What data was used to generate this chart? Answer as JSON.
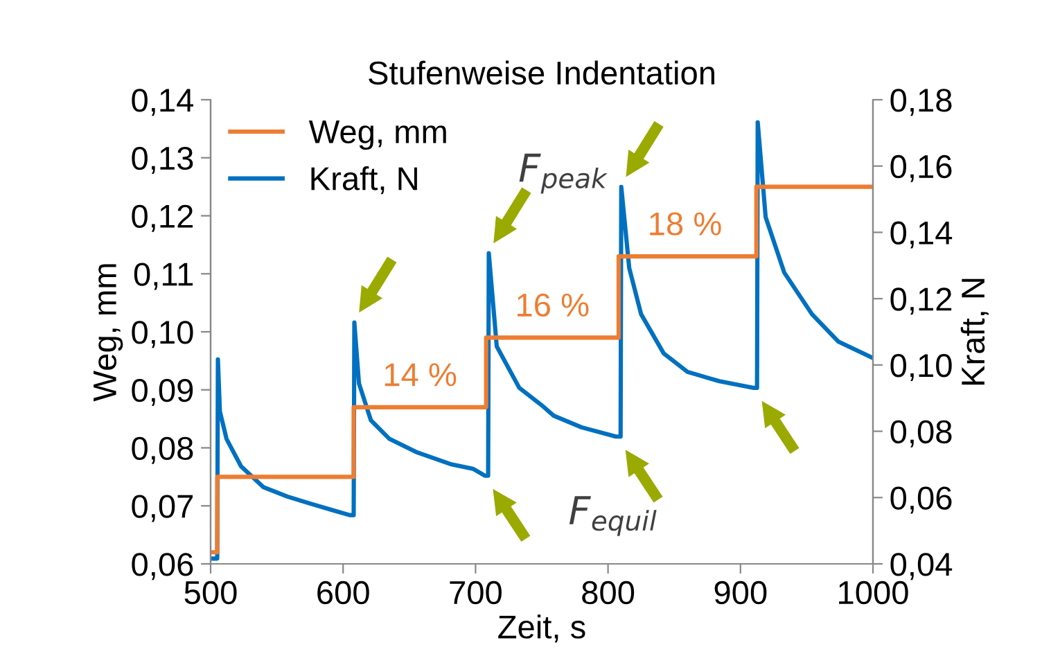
{
  "chart_data": {
    "type": "line",
    "title": "Stufenweise Indentation",
    "xlabel": "Zeit, s",
    "ylabel": "Weg, mm",
    "y2label": "Kraft, N",
    "xlim": [
      500,
      1000
    ],
    "xticks": [
      500,
      600,
      700,
      800,
      900,
      1000
    ],
    "ylim": [
      0.06,
      0.14
    ],
    "yticks": [
      {
        "value": 0.06,
        "label": "0,06"
      },
      {
        "value": 0.07,
        "label": "0,07"
      },
      {
        "value": 0.08,
        "label": "0,08"
      },
      {
        "value": 0.09,
        "label": "0,09"
      },
      {
        "value": 0.1,
        "label": "0,10"
      },
      {
        "value": 0.11,
        "label": "0,11"
      },
      {
        "value": 0.12,
        "label": "0,12"
      },
      {
        "value": 0.13,
        "label": "0,13"
      },
      {
        "value": 0.14,
        "label": "0,14"
      }
    ],
    "y2lim": [
      0.04,
      0.18
    ],
    "y2ticks": [
      {
        "value": 0.04,
        "label": "0,04"
      },
      {
        "value": 0.06,
        "label": "0,06"
      },
      {
        "value": 0.08,
        "label": "0,08"
      },
      {
        "value": 0.1,
        "label": "0,10"
      },
      {
        "value": 0.12,
        "label": "0,12"
      },
      {
        "value": 0.14,
        "label": "0,14"
      },
      {
        "value": 0.16,
        "label": "0,16"
      },
      {
        "value": 0.18,
        "label": "0,18"
      }
    ],
    "grid": false,
    "legend": "top left",
    "series": [
      {
        "name": "Weg, mm",
        "type": "step",
        "color": "#ed7d31",
        "x": [
          500,
          505,
          608,
          708,
          808,
          912,
          1000
        ],
        "values": [
          0.062,
          0.075,
          0.087,
          0.099,
          0.113,
          0.125,
          0.125
        ]
      },
      {
        "name": "Kraft, N",
        "axis": "y2",
        "color": "#0070c0",
        "x": [
          500,
          505,
          505.5,
          507,
          512,
          523,
          540,
          558,
          575,
          593,
          605,
          608,
          608.5,
          612,
          621,
          635,
          656,
          681,
          698,
          707,
          709.5,
          710,
          716,
          733,
          751,
          759,
          780,
          806,
          809.5,
          810,
          816,
          825,
          842,
          860,
          884,
          910,
          912.5,
          913,
          919,
          933,
          954,
          974,
          1000
        ],
        "values": [
          0.0416,
          0.0416,
          0.1017,
          0.086,
          0.0777,
          0.0694,
          0.0631,
          0.0603,
          0.0582,
          0.0561,
          0.0547,
          0.0547,
          0.1128,
          0.0944,
          0.0833,
          0.0777,
          0.0736,
          0.0701,
          0.0687,
          0.0666,
          0.0666,
          0.1337,
          0.1056,
          0.0931,
          0.0875,
          0.0847,
          0.0812,
          0.0784,
          0.0784,
          0.1537,
          0.1293,
          0.1153,
          0.1035,
          0.0979,
          0.0951,
          0.0931,
          0.0931,
          0.1732,
          0.1446,
          0.1279,
          0.1153,
          0.107,
          0.1021
        ]
      }
    ],
    "annotations": [
      {
        "text": "14 %",
        "x": 658,
        "y": 0.087
      },
      {
        "text": "16 %",
        "x": 758,
        "y": 0.099
      },
      {
        "text": "18 %",
        "x": 858,
        "y": 0.113
      },
      "F$_{peak}$",
      "F$_{equil}$"
    ]
  }
}
